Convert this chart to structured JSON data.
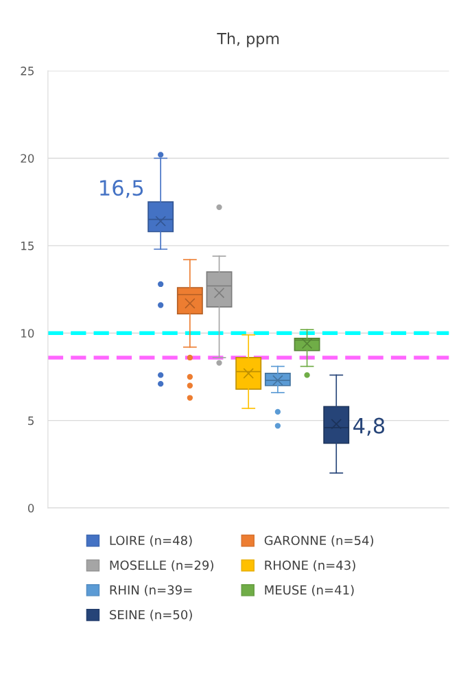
{
  "chart_data": {
    "type": "box",
    "title": "Th, ppm",
    "categories": [
      null
    ],
    "series": [
      {
        "name": "LOIRE (n=48)",
        "color": "#4472c4",
        "boxes": [
          {
            "low": 14.8,
            "q1": 15.8,
            "median": 16.5,
            "q3": 17.5,
            "high": 20.0,
            "mean": 16.4,
            "outliers": [
              20.2,
              12.8,
              11.6,
              7.6,
              7.1
            ]
          }
        ]
      },
      {
        "name": "GARONNE (n=54)",
        "color": "#ed7d31",
        "boxes": [
          {
            "low": 9.2,
            "q1": 11.1,
            "median": 12.2,
            "q3": 12.6,
            "high": 14.2,
            "mean": 11.7,
            "outliers": [
              8.6,
              7.5,
              7.0,
              6.3
            ]
          }
        ]
      },
      {
        "name": "MOSELLE (n=29)",
        "color": "#a5a5a5",
        "boxes": [
          {
            "low": 8.6,
            "q1": 11.5,
            "median": 12.7,
            "q3": 13.5,
            "high": 14.4,
            "mean": 12.3,
            "outliers": [
              17.2,
              8.3
            ]
          }
        ]
      },
      {
        "name": "RHONE (n=43)",
        "color": "#ffc000",
        "boxes": [
          {
            "low": 5.7,
            "q1": 6.8,
            "median": 7.8,
            "q3": 8.6,
            "high": 9.9,
            "mean": 7.7
          }
        ]
      },
      {
        "name": "RHIN (n=39=",
        "color": "#5b9bd5",
        "boxes": [
          {
            "low": 6.6,
            "q1": 7.0,
            "median": 7.3,
            "q3": 7.7,
            "high": 8.1,
            "mean": 7.3,
            "outliers": [
              5.5,
              4.7
            ]
          }
        ]
      },
      {
        "name": "MEUSE (n=41)",
        "color": "#70ad47",
        "boxes": [
          {
            "low": 8.1,
            "q1": 9.0,
            "median": 9.6,
            "q3": 9.7,
            "high": 10.2,
            "mean": 9.4,
            "outliers": [
              7.6
            ]
          }
        ]
      },
      {
        "name": "SEINE (n=50)",
        "color": "#264478",
        "boxes": [
          {
            "low": 2.0,
            "q1": 3.7,
            "median": 4.6,
            "q3": 5.8,
            "high": 7.6,
            "mean": 4.8
          }
        ]
      }
    ],
    "ylim": [
      0,
      25
    ],
    "yticks": [
      0,
      5,
      10,
      15,
      20,
      25
    ],
    "grid": "y",
    "legend": "bottom",
    "ref_lines": [
      {
        "axis": "y",
        "value": 10.0,
        "color": "#00ffff",
        "line_style": "dashed"
      },
      {
        "axis": "y",
        "value": 8.6,
        "color": "#ff66ff",
        "line_style": "dashed"
      }
    ],
    "annotations": [
      "16,5",
      "4,8"
    ]
  }
}
